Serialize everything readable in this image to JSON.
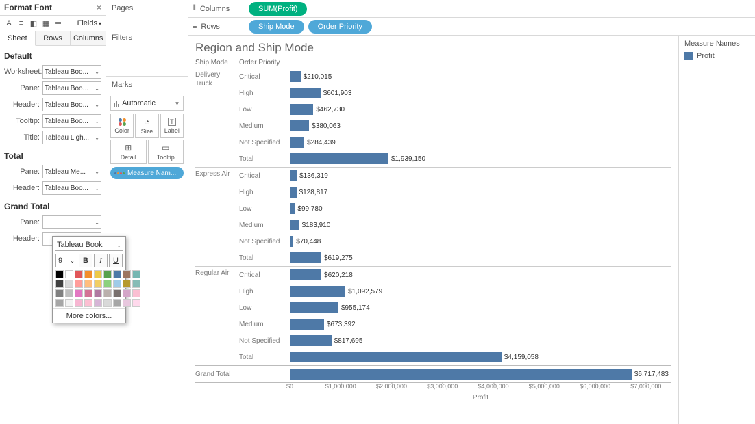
{
  "format_panel": {
    "title": "Format Font",
    "fields_label": "Fields",
    "tabs": [
      "Sheet",
      "Rows",
      "Columns"
    ],
    "active_tab": 0,
    "sections": {
      "default": {
        "title": "Default",
        "rows": [
          {
            "label": "Worksheet:",
            "value": "Tableau Boo..."
          },
          {
            "label": "Pane:",
            "value": "Tableau Boo..."
          },
          {
            "label": "Header:",
            "value": "Tableau Boo..."
          },
          {
            "label": "Tooltip:",
            "value": "Tableau Boo..."
          },
          {
            "label": "Title:",
            "value": "Tableau Ligh..."
          }
        ]
      },
      "total": {
        "title": "Total",
        "rows": [
          {
            "label": "Pane:",
            "value": "Tableau Me..."
          },
          {
            "label": "Header:",
            "value": "Tableau Boo..."
          }
        ]
      },
      "grand_total": {
        "title": "Grand Total",
        "rows": [
          {
            "label": "Pane:",
            "value": ""
          },
          {
            "label": "Header:",
            "value": ""
          }
        ]
      }
    }
  },
  "picker": {
    "font": "Tableau Book",
    "size": "9",
    "bold": "B",
    "italic": "I",
    "underline": "U",
    "more": "More colors...",
    "swatches": [
      [
        "#000000",
        "#ffffff",
        "#e15759",
        "#f28e2b",
        "#edc948",
        "#59a14f",
        "#4e79a7",
        "#9c755f",
        "#76b7b2"
      ],
      [
        "#404040",
        "#d9d9d9",
        "#ff9d9a",
        "#ffbe7d",
        "#f1ce63",
        "#8cd17d",
        "#a0cbe8",
        "#b6992d",
        "#86bcb6"
      ],
      [
        "#808080",
        "#bfbfbf",
        "#e377c2",
        "#d37295",
        "#b07aa1",
        "#bab0ac",
        "#79706e",
        "#d4a6c8",
        "#fabfd2"
      ],
      [
        "#a6a6a6",
        "#f2f2f2",
        "#f7b6d2",
        "#fcbfd2",
        "#d6b5d6",
        "#d9d9d9",
        "#a6a6a6",
        "#e8c7de",
        "#ffd9ec"
      ]
    ]
  },
  "cards": {
    "pages": "Pages",
    "filters": "Filters",
    "marks": "Marks",
    "marks_type": "Automatic",
    "cells": [
      {
        "label": "Color"
      },
      {
        "label": "Size"
      },
      {
        "label": "Label"
      },
      {
        "label": "Detail"
      },
      {
        "label": "Tooltip"
      }
    ],
    "measure_names_pill": "Measure Nam..."
  },
  "shelves": {
    "columns_label": "Columns",
    "rows_label": "Rows",
    "columns_pills": [
      {
        "text": "SUM(Profit)",
        "color": "#00b180"
      }
    ],
    "rows_pills": [
      {
        "text": "Ship Mode",
        "color": "#4fa8d8"
      },
      {
        "text": "Order Priority",
        "color": "#4fa8d8"
      }
    ]
  },
  "viz": {
    "title": "Region and Ship Mode",
    "col_headers": [
      "Ship Mode",
      "Order Priority"
    ],
    "x_axis_title": "Profit",
    "x_max": 7500000,
    "x_ticks": [
      {
        "v": 0,
        "label": "$0"
      },
      {
        "v": 1000000,
        "label": "$1,000,000"
      },
      {
        "v": 2000000,
        "label": "$2,000,000"
      },
      {
        "v": 3000000,
        "label": "$3,000,000"
      },
      {
        "v": 4000000,
        "label": "$4,000,000"
      },
      {
        "v": 5000000,
        "label": "$5,000,000"
      },
      {
        "v": 6000000,
        "label": "$6,000,000"
      },
      {
        "v": 7000000,
        "label": "$7,000,000"
      }
    ],
    "groups": [
      {
        "label": "Delivery Truck",
        "rows": [
          {
            "cat": "Critical",
            "v": 210015,
            "label": "$210,015"
          },
          {
            "cat": "High",
            "v": 601903,
            "label": "$601,903"
          },
          {
            "cat": "Low",
            "v": 462730,
            "label": "$462,730"
          },
          {
            "cat": "Medium",
            "v": 380063,
            "label": "$380,063"
          },
          {
            "cat": "Not Specified",
            "v": 284439,
            "label": "$284,439"
          },
          {
            "cat": "Total",
            "v": 1939150,
            "label": "$1,939,150"
          }
        ]
      },
      {
        "label": "Express Air",
        "rows": [
          {
            "cat": "Critical",
            "v": 136319,
            "label": "$136,319"
          },
          {
            "cat": "High",
            "v": 128817,
            "label": "$128,817"
          },
          {
            "cat": "Low",
            "v": 99780,
            "label": "$99,780"
          },
          {
            "cat": "Medium",
            "v": 183910,
            "label": "$183,910"
          },
          {
            "cat": "Not Specified",
            "v": 70448,
            "label": "$70,448"
          },
          {
            "cat": "Total",
            "v": 619275,
            "label": "$619,275"
          }
        ]
      },
      {
        "label": "Regular Air",
        "rows": [
          {
            "cat": "Critical",
            "v": 620218,
            "label": "$620,218"
          },
          {
            "cat": "High",
            "v": 1092579,
            "label": "$1,092,579"
          },
          {
            "cat": "Low",
            "v": 955174,
            "label": "$955,174"
          },
          {
            "cat": "Medium",
            "v": 673392,
            "label": "$673,392"
          },
          {
            "cat": "Not Specified",
            "v": 817695,
            "label": "$817,695"
          },
          {
            "cat": "Total",
            "v": 4159058,
            "label": "$4,159,058"
          }
        ]
      }
    ],
    "grand_total": {
      "label": "Grand Total",
      "v": 6717483,
      "text": "$6,717,483"
    },
    "bar_color": "#4e79a7"
  },
  "legend": {
    "title": "Measure Names",
    "items": [
      {
        "label": "Profit",
        "color": "#4e79a7"
      }
    ]
  }
}
